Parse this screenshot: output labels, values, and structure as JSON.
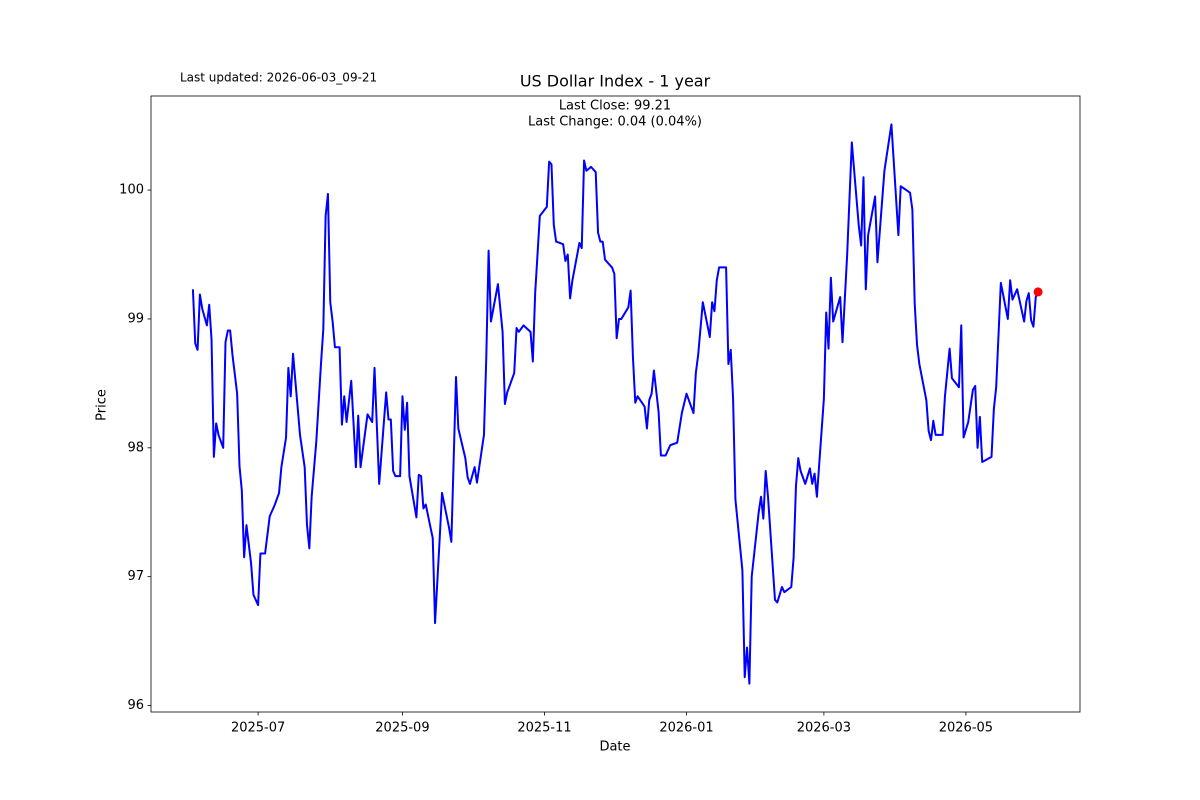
{
  "chart_data": {
    "type": "line",
    "title": "US Dollar Index - 1 year",
    "subtitle": "Last updated: 2026-06-03_09-21",
    "annotations": [
      "Last Close: 99.21",
      "Last Change: 0.04 (0.04%)"
    ],
    "x_label": "Date",
    "y_label": "Price",
    "color": "#0000ff",
    "marker_color": "#ff0000",
    "grid": false,
    "xlim": [
      "2025-05-16",
      "2026-06-19"
    ],
    "xticks": [
      {
        "value": "2025-07-01",
        "label": "2025-07"
      },
      {
        "value": "2025-09-01",
        "label": "2025-09"
      },
      {
        "value": "2025-11-01",
        "label": "2025-11"
      },
      {
        "value": "2026-01-01",
        "label": "2026-01"
      },
      {
        "value": "2026-03-01",
        "label": "2026-03"
      },
      {
        "value": "2026-05-01",
        "label": "2026-05"
      }
    ],
    "ylim": [
      95.95,
      100.73
    ],
    "yticks": [
      96,
      97,
      98,
      99,
      100
    ],
    "x": [
      "2025-06-03",
      "2025-06-04",
      "2025-06-05",
      "2025-06-06",
      "2025-06-07",
      "2025-06-09",
      "2025-06-10",
      "2025-06-11",
      "2025-06-12",
      "2025-06-13",
      "2025-06-14",
      "2025-06-16",
      "2025-06-17",
      "2025-06-18",
      "2025-06-19",
      "2025-06-20",
      "2025-06-22",
      "2025-06-23",
      "2025-06-24",
      "2025-06-25",
      "2025-06-26",
      "2025-06-28",
      "2025-06-29",
      "2025-07-01",
      "2025-07-02",
      "2025-07-04",
      "2025-07-06",
      "2025-07-08",
      "2025-07-10",
      "2025-07-11",
      "2025-07-13",
      "2025-07-14",
      "2025-07-15",
      "2025-07-16",
      "2025-07-19",
      "2025-07-21",
      "2025-07-22",
      "2025-07-23",
      "2025-07-24",
      "2025-07-26",
      "2025-07-28",
      "2025-07-29",
      "2025-07-30",
      "2025-07-31",
      "2025-08-01",
      "2025-08-02",
      "2025-08-03",
      "2025-08-05",
      "2025-08-06",
      "2025-08-07",
      "2025-08-08",
      "2025-08-10",
      "2025-08-12",
      "2025-08-13",
      "2025-08-14",
      "2025-08-17",
      "2025-08-19",
      "2025-08-20",
      "2025-08-22",
      "2025-08-25",
      "2025-08-26",
      "2025-08-27",
      "2025-08-28",
      "2025-08-29",
      "2025-08-31",
      "2025-09-01",
      "2025-09-02",
      "2025-09-03",
      "2025-09-04",
      "2025-09-07",
      "2025-09-08",
      "2025-09-09",
      "2025-09-10",
      "2025-09-11",
      "2025-09-14",
      "2025-09-15",
      "2025-09-17",
      "2025-09-18",
      "2025-09-21",
      "2025-09-22",
      "2025-09-24",
      "2025-09-25",
      "2025-09-28",
      "2025-09-29",
      "2025-09-30",
      "2025-10-02",
      "2025-10-03",
      "2025-10-06",
      "2025-10-07",
      "2025-10-08",
      "2025-10-09",
      "2025-10-12",
      "2025-10-14",
      "2025-10-15",
      "2025-10-16",
      "2025-10-19",
      "2025-10-20",
      "2025-10-21",
      "2025-10-23",
      "2025-10-26",
      "2025-10-27",
      "2025-10-28",
      "2025-10-30",
      "2025-11-02",
      "2025-11-03",
      "2025-11-04",
      "2025-11-05",
      "2025-11-06",
      "2025-11-09",
      "2025-11-10",
      "2025-11-11",
      "2025-11-12",
      "2025-11-13",
      "2025-11-16",
      "2025-11-17",
      "2025-11-18",
      "2025-11-19",
      "2025-11-21",
      "2025-11-23",
      "2025-11-24",
      "2025-11-25",
      "2025-11-26",
      "2025-11-27",
      "2025-11-30",
      "2025-12-01",
      "2025-12-02",
      "2025-12-03",
      "2025-12-04",
      "2025-12-07",
      "2025-12-08",
      "2025-12-09",
      "2025-12-10",
      "2025-12-11",
      "2025-12-14",
      "2025-12-15",
      "2025-12-16",
      "2025-12-17",
      "2025-12-18",
      "2025-12-20",
      "2025-12-21",
      "2025-12-23",
      "2025-12-25",
      "2025-12-28",
      "2025-12-30",
      "2026-01-01",
      "2026-01-04",
      "2026-01-05",
      "2026-01-06",
      "2026-01-08",
      "2026-01-11",
      "2026-01-12",
      "2026-01-13",
      "2026-01-14",
      "2026-01-15",
      "2026-01-18",
      "2026-01-19",
      "2026-01-20",
      "2026-01-21",
      "2026-01-22",
      "2026-01-25",
      "2026-01-26",
      "2026-01-27",
      "2026-01-28",
      "2026-01-29",
      "2026-02-01",
      "2026-02-02",
      "2026-02-03",
      "2026-02-04",
      "2026-02-05",
      "2026-02-08",
      "2026-02-09",
      "2026-02-11",
      "2026-02-12",
      "2026-02-15",
      "2026-02-16",
      "2026-02-17",
      "2026-02-18",
      "2026-02-19",
      "2026-02-21",
      "2026-02-23",
      "2026-02-24",
      "2026-02-25",
      "2026-02-26",
      "2026-03-01",
      "2026-03-02",
      "2026-03-03",
      "2026-03-04",
      "2026-03-05",
      "2026-03-08",
      "2026-03-09",
      "2026-03-11",
      "2026-03-13",
      "2026-03-16",
      "2026-03-17",
      "2026-03-18",
      "2026-03-19",
      "2026-03-20",
      "2026-03-23",
      "2026-03-24",
      "2026-03-27",
      "2026-03-30",
      "2026-04-02",
      "2026-04-03",
      "2026-04-07",
      "2026-04-08",
      "2026-04-09",
      "2026-04-10",
      "2026-04-11",
      "2026-04-14",
      "2026-04-15",
      "2026-04-16",
      "2026-04-17",
      "2026-04-18",
      "2026-04-21",
      "2026-04-22",
      "2026-04-24",
      "2026-04-25",
      "2026-04-28",
      "2026-04-29",
      "2026-04-30",
      "2026-05-02",
      "2026-05-04",
      "2026-05-05",
      "2026-05-06",
      "2026-05-07",
      "2026-05-08",
      "2026-05-12",
      "2026-05-13",
      "2026-05-14",
      "2026-05-16",
      "2026-05-19",
      "2026-05-20",
      "2026-05-21",
      "2026-05-23",
      "2026-05-26",
      "2026-05-27",
      "2026-05-28",
      "2026-05-29",
      "2026-05-30",
      "2026-05-31",
      "2026-06-01"
    ],
    "values": [
      99.23,
      98.81,
      98.76,
      99.19,
      99.08,
      98.95,
      99.11,
      98.84,
      97.93,
      98.19,
      98.1,
      98.0,
      98.82,
      98.91,
      98.91,
      98.72,
      98.42,
      97.86,
      97.67,
      97.15,
      97.4,
      97.1,
      96.86,
      96.78,
      97.18,
      97.18,
      97.47,
      97.55,
      97.65,
      97.85,
      98.08,
      98.62,
      98.4,
      98.73,
      98.1,
      97.85,
      97.4,
      97.22,
      97.62,
      98.05,
      98.65,
      98.92,
      99.8,
      99.97,
      99.13,
      98.98,
      98.78,
      98.78,
      98.18,
      98.4,
      98.2,
      98.52,
      97.85,
      98.25,
      97.85,
      98.26,
      98.2,
      98.62,
      97.72,
      98.43,
      98.22,
      98.22,
      97.82,
      97.78,
      97.78,
      98.4,
      98.14,
      98.35,
      97.78,
      97.46,
      97.79,
      97.78,
      97.53,
      97.56,
      97.3,
      96.64,
      97.3,
      97.65,
      97.38,
      97.27,
      98.55,
      98.15,
      97.92,
      97.77,
      97.72,
      97.85,
      97.73,
      98.1,
      98.7,
      99.53,
      98.98,
      99.27,
      98.9,
      98.34,
      98.43,
      98.58,
      98.93,
      98.9,
      98.95,
      98.9,
      98.67,
      99.2,
      99.8,
      99.87,
      100.22,
      100.2,
      99.73,
      99.6,
      99.58,
      99.45,
      99.5,
      99.16,
      99.3,
      99.59,
      99.55,
      100.23,
      100.15,
      100.18,
      100.14,
      99.67,
      99.6,
      99.6,
      99.46,
      99.4,
      99.35,
      98.85,
      99.0,
      99.0,
      99.09,
      99.22,
      98.7,
      98.35,
      98.4,
      98.32,
      98.15,
      98.37,
      98.42,
      98.6,
      98.28,
      97.94,
      97.94,
      98.02,
      98.04,
      98.27,
      98.42,
      98.27,
      98.58,
      98.72,
      99.13,
      98.86,
      99.13,
      99.06,
      99.3,
      99.4,
      99.4,
      98.65,
      98.76,
      98.38,
      97.6,
      97.05,
      96.22,
      96.45,
      96.17,
      97.0,
      97.5,
      97.62,
      97.45,
      97.82,
      97.62,
      96.82,
      96.8,
      96.92,
      96.88,
      96.92,
      97.15,
      97.7,
      97.92,
      97.82,
      97.72,
      97.84,
      97.72,
      97.8,
      97.62,
      98.38,
      99.05,
      98.77,
      99.32,
      98.98,
      99.17,
      98.82,
      99.5,
      100.37,
      99.72,
      99.57,
      100.1,
      99.23,
      99.65,
      99.95,
      99.44,
      100.15,
      100.51,
      99.65,
      100.03,
      99.98,
      99.85,
      99.12,
      98.8,
      98.65,
      98.37,
      98.13,
      98.06,
      98.21,
      98.1,
      98.1,
      98.4,
      98.77,
      98.54,
      98.47,
      98.95,
      98.08,
      98.2,
      98.45,
      98.48,
      98.0,
      98.24,
      97.89,
      97.93,
      98.3,
      98.47,
      99.28,
      99.0,
      99.3,
      99.15,
      99.23,
      98.98,
      99.14,
      99.2,
      98.99,
      98.94,
      99.17,
      99.21
    ]
  }
}
